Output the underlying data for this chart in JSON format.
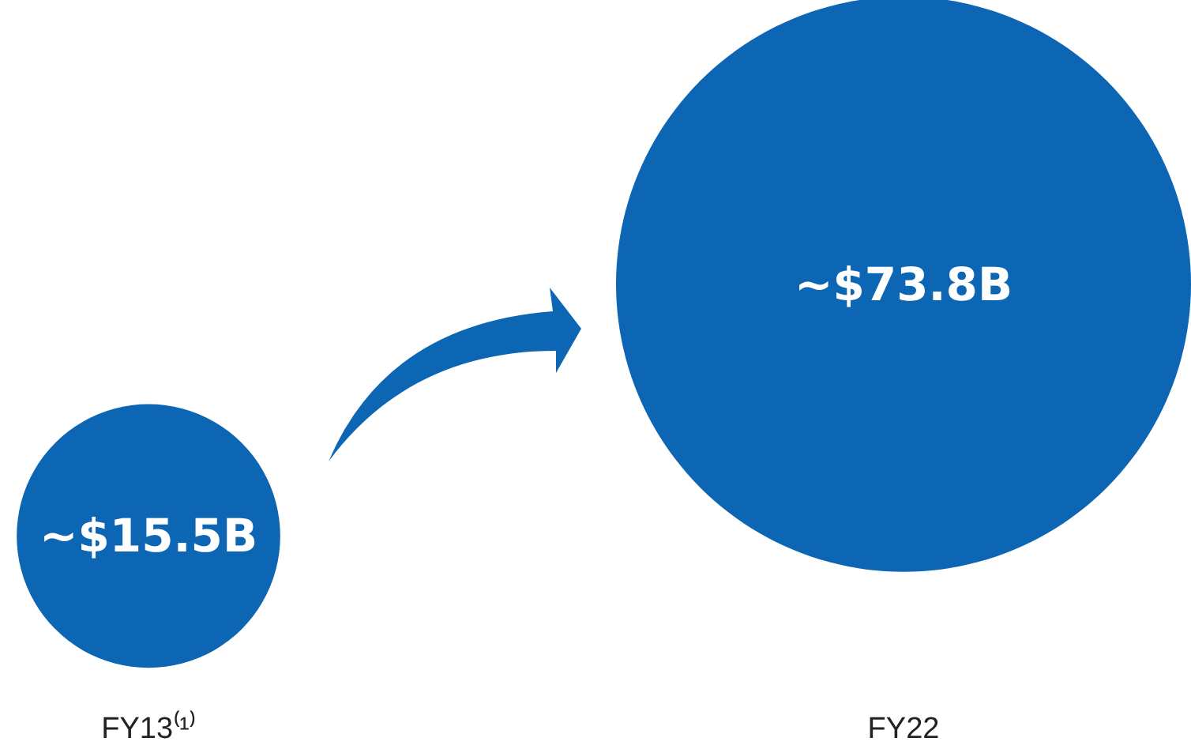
{
  "chart_data": {
    "type": "other",
    "categories": [
      "FY13⁽¹⁾",
      "FY22"
    ],
    "series": [
      {
        "color": "#0d66b3",
        "values": [
          15.5,
          73.8
        ],
        "value_labels": [
          "~$15.5B",
          "~$73.8B"
        ]
      }
    ]
  }
}
